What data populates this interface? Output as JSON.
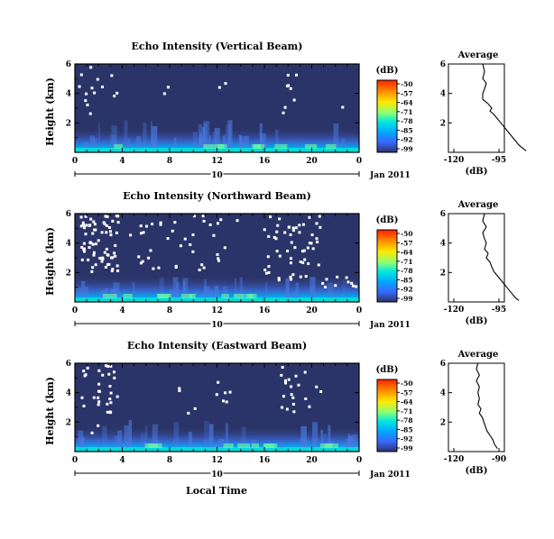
{
  "figure": {
    "xlabel": "Local Time",
    "date_label": "Jan 2011"
  },
  "chart_data": [
    {
      "type": "heatmap",
      "title": "Echo Intensity (Vertical Beam)",
      "ylabel": "Height (km)",
      "x_ticks": [
        "0",
        "4",
        "8",
        "12",
        "16",
        "20",
        "0"
      ],
      "xlim": [
        0,
        24
      ],
      "y_ticks": [
        "2",
        "4",
        "6"
      ],
      "ylim": [
        0,
        6
      ],
      "date_axis": {
        "day": "10",
        "label": "Jan 2011"
      },
      "colorbar": {
        "label": "(dB)",
        "ticks": [
          "-50",
          "-57",
          "-64",
          "-71",
          "-78",
          "-85",
          "-92",
          "-99"
        ]
      },
      "average": {
        "title": "Average",
        "xlabel": "(dB)",
        "x_ticks": [
          "-120",
          "-95"
        ],
        "y_ticks": [
          "2",
          "4",
          "6"
        ],
        "profile": [
          [
            -104,
            6
          ],
          [
            -103,
            5.5
          ],
          [
            -104,
            5
          ],
          [
            -102,
            4.7
          ],
          [
            -103,
            4.3
          ],
          [
            -104,
            4
          ],
          [
            -104,
            3.6
          ],
          [
            -101,
            3.3
          ],
          [
            -99,
            3
          ],
          [
            -100,
            2.8
          ],
          [
            -98,
            2.6
          ],
          [
            -96,
            2.3
          ],
          [
            -94,
            2.0
          ],
          [
            -92,
            1.7
          ],
          [
            -90,
            1.4
          ],
          [
            -88,
            1.1
          ],
          [
            -86,
            0.8
          ],
          [
            -84,
            0.5
          ],
          [
            -82,
            0.3
          ],
          [
            -80,
            0.1
          ]
        ]
      }
    },
    {
      "type": "heatmap",
      "title": "Echo Intensity (Northward Beam)",
      "ylabel": "Height (km)",
      "x_ticks": [
        "0",
        "4",
        "8",
        "12",
        "16",
        "20",
        "0"
      ],
      "xlim": [
        0,
        24
      ],
      "y_ticks": [
        "2",
        "4",
        "6"
      ],
      "ylim": [
        0,
        6
      ],
      "date_axis": {
        "day": "10",
        "label": "Jan 2011"
      },
      "colorbar": {
        "label": "(dB)",
        "ticks": [
          "-50",
          "-57",
          "-64",
          "-71",
          "-78",
          "-85",
          "-92",
          "-99"
        ]
      },
      "average": {
        "title": "Average",
        "xlabel": "(dB)",
        "x_ticks": [
          "-120",
          "-95"
        ],
        "y_ticks": [
          "2",
          "4",
          "6"
        ],
        "profile": [
          [
            -103,
            6
          ],
          [
            -104,
            5.5
          ],
          [
            -102,
            5.1
          ],
          [
            -104,
            4.7
          ],
          [
            -103,
            4.3
          ],
          [
            -102,
            4
          ],
          [
            -103,
            3.6
          ],
          [
            -101,
            3.3
          ],
          [
            -102,
            3
          ],
          [
            -100,
            2.7
          ],
          [
            -99,
            2.4
          ],
          [
            -98,
            2.1
          ],
          [
            -96,
            1.8
          ],
          [
            -94,
            1.5
          ],
          [
            -92,
            1.2
          ],
          [
            -90,
            0.9
          ],
          [
            -88,
            0.6
          ],
          [
            -86,
            0.3
          ],
          [
            -84,
            0.1
          ]
        ]
      }
    },
    {
      "type": "heatmap",
      "title": "Echo Intensity (Eastward Beam)",
      "ylabel": "Height (km)",
      "x_ticks": [
        "0",
        "4",
        "8",
        "12",
        "16",
        "20",
        "0"
      ],
      "xlim": [
        0,
        24
      ],
      "y_ticks": [
        "2",
        "4",
        "6"
      ],
      "ylim": [
        0,
        6
      ],
      "date_axis": {
        "day": "10",
        "label": "Jan 2011"
      },
      "colorbar": {
        "label": "(dB)",
        "ticks": [
          "-50",
          "-57",
          "-64",
          "-71",
          "-78",
          "-85",
          "-92",
          "-99"
        ]
      },
      "average": {
        "title": "Average",
        "xlabel": "(dB)",
        "x_ticks": [
          "-120",
          "-90"
        ],
        "y_ticks": [
          "2",
          "4",
          "6"
        ],
        "profile": [
          [
            -104,
            6
          ],
          [
            -105,
            5.6
          ],
          [
            -103,
            5.2
          ],
          [
            -105,
            4.8
          ],
          [
            -103,
            4.4
          ],
          [
            -104,
            4
          ],
          [
            -103,
            3.6
          ],
          [
            -104,
            3.2
          ],
          [
            -102,
            2.9
          ],
          [
            -103,
            2.6
          ],
          [
            -101,
            2.3
          ],
          [
            -100,
            2.0
          ],
          [
            -99,
            1.7
          ],
          [
            -98,
            1.4
          ],
          [
            -96,
            1.1
          ],
          [
            -94,
            0.8
          ],
          [
            -93,
            0.5
          ],
          [
            -91,
            0.2
          ]
        ]
      }
    }
  ],
  "colors": {
    "background": "#2b3468",
    "colormap": [
      "#ff0000",
      "#ff8000",
      "#ffe000",
      "#80ff80",
      "#00e0e0",
      "#00a0ff",
      "#3060ff",
      "#2b3468"
    ]
  }
}
